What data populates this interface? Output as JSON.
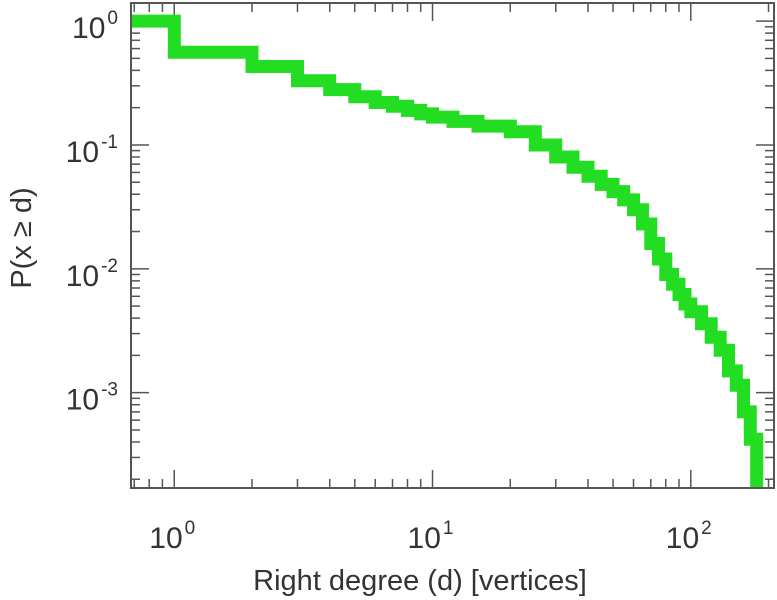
{
  "chart_data": {
    "type": "line",
    "step": true,
    "x_scale": "log",
    "y_scale": "log",
    "xlim": [
      0.68,
      210
    ],
    "ylim": [
      0.00017,
      1.4
    ],
    "xlabel": "Right degree (d) [vertices]",
    "ylabel": "P(x ≥ d)",
    "grid": false,
    "legend": "none",
    "color": "#22dd22",
    "x_ticks": [
      {
        "value": 1,
        "base": "10",
        "exp": "0"
      },
      {
        "value": 10,
        "base": "10",
        "exp": "1"
      },
      {
        "value": 100,
        "base": "10",
        "exp": "2"
      }
    ],
    "y_ticks": [
      {
        "value": 1,
        "base": "10",
        "exp": "0"
      },
      {
        "value": 0.1,
        "base": "10",
        "exp": "-1"
      },
      {
        "value": 0.01,
        "base": "10",
        "exp": "-2"
      },
      {
        "value": 0.001,
        "base": "10",
        "exp": "-3"
      }
    ],
    "series": [
      {
        "x": [
          0.68,
          1,
          2,
          3,
          4,
          5,
          6,
          7,
          8,
          9,
          10,
          12,
          15,
          20,
          25,
          30,
          35,
          40,
          45,
          50,
          55,
          60,
          65,
          70,
          75,
          80,
          85,
          90,
          95,
          100,
          110,
          120,
          130,
          140,
          150,
          160,
          170,
          180
        ],
        "y": [
          1.0,
          0.56,
          0.43,
          0.33,
          0.28,
          0.245,
          0.22,
          0.205,
          0.19,
          0.178,
          0.168,
          0.155,
          0.142,
          0.128,
          0.1,
          0.08,
          0.066,
          0.056,
          0.048,
          0.042,
          0.036,
          0.03,
          0.023,
          0.016,
          0.012,
          0.009,
          0.0075,
          0.0062,
          0.0052,
          0.0045,
          0.0036,
          0.0028,
          0.0022,
          0.0015,
          0.00115,
          0.0007,
          0.00042,
          0.00017
        ]
      }
    ]
  }
}
